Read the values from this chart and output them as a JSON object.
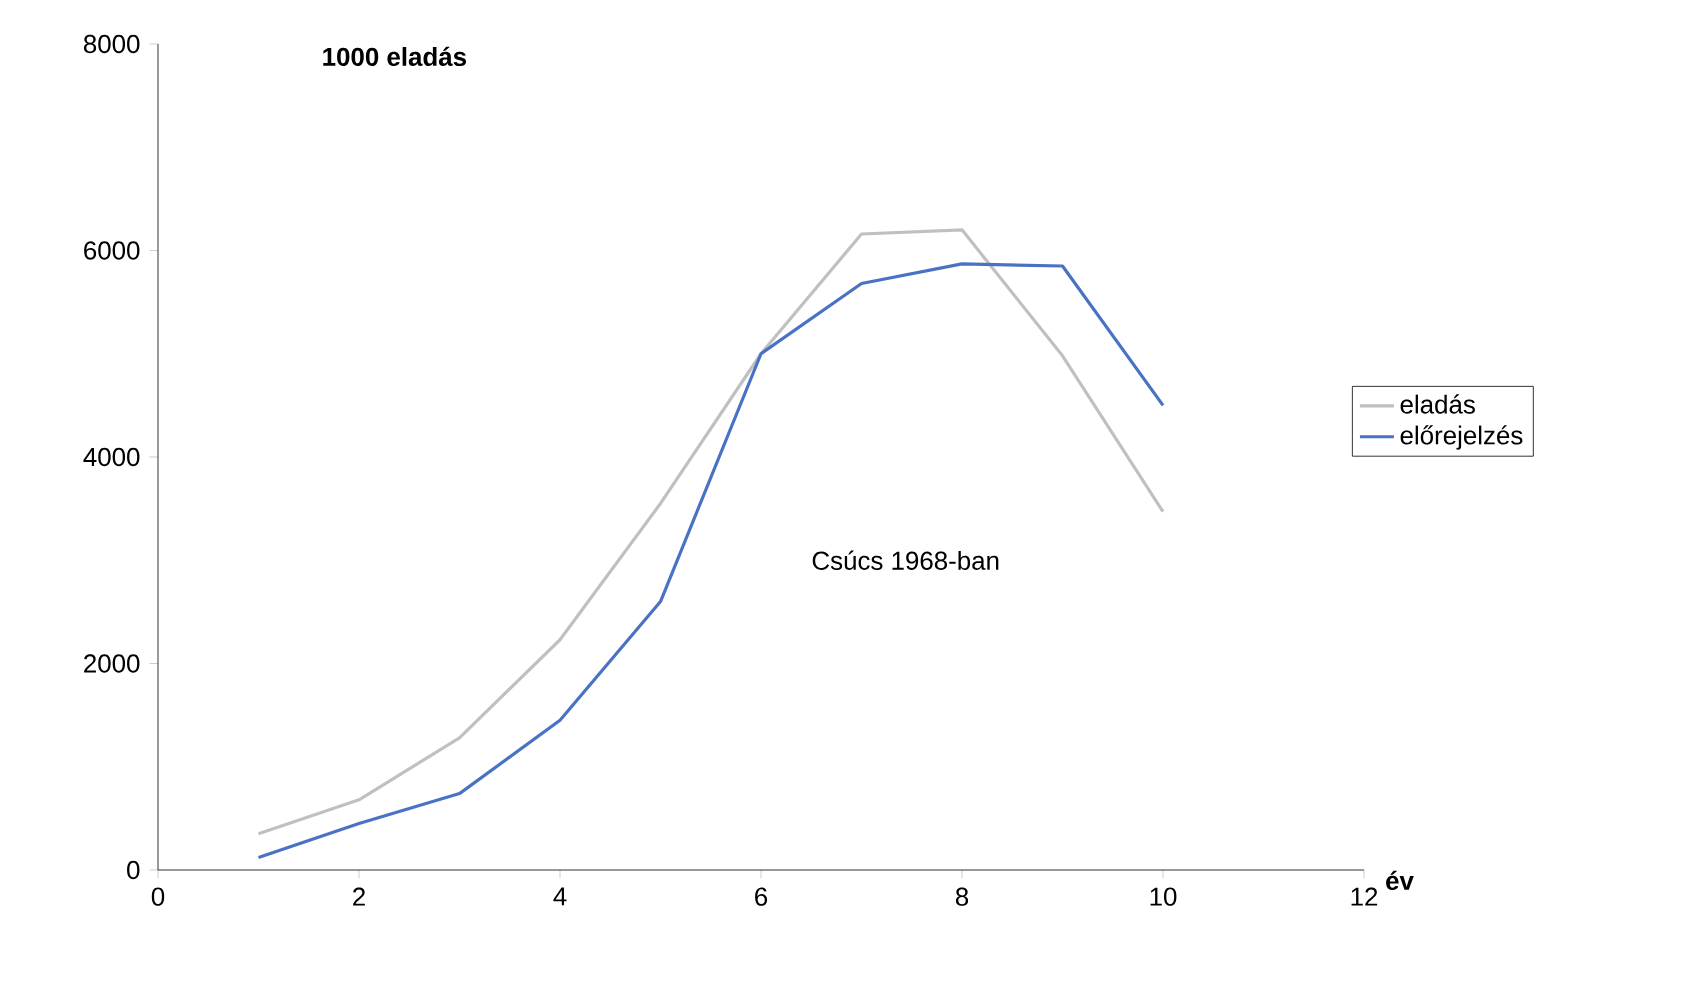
{
  "chart_data": {
    "type": "line",
    "ylabel": "1000 eladás",
    "xlabel": "év",
    "x": [
      1,
      2,
      3,
      4,
      5,
      6,
      7,
      8,
      9,
      10
    ],
    "series": [
      {
        "name": "eladás",
        "color": "#c0c0c0",
        "values": [
          350,
          680,
          1280,
          2230,
          3550,
          5000,
          6160,
          6200,
          4980,
          3470
        ]
      },
      {
        "name": "előrejelzés",
        "color": "#4a72c4",
        "values": [
          120,
          450,
          740,
          1450,
          2600,
          5000,
          5680,
          5870,
          5850,
          4500
        ]
      }
    ],
    "xlim": [
      0,
      12
    ],
    "xticks": [
      0,
      2,
      4,
      6,
      8,
      10,
      12
    ],
    "ylim": [
      0,
      8000
    ],
    "yticks": [
      0,
      2000,
      4000,
      6000,
      8000
    ],
    "annotations": [
      "Csúcs 1968-ban"
    ],
    "legend": "right",
    "grid": false,
    "marker": "none",
    "line_style": "solid"
  }
}
